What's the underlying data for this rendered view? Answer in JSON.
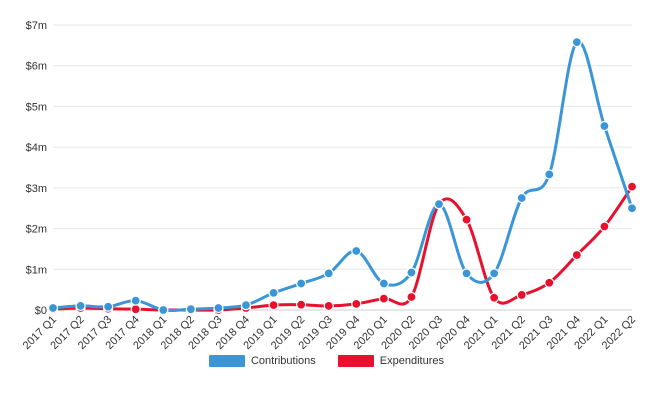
{
  "chart_data": {
    "type": "line",
    "categories": [
      "2017 Q1",
      "2017 Q2",
      "2017 Q3",
      "2017 Q4",
      "2018 Q1",
      "2018 Q2",
      "2018 Q3",
      "2018 Q4",
      "2019 Q1",
      "2019 Q2",
      "2019 Q3",
      "2019 Q4",
      "2020 Q1",
      "2020 Q2",
      "2020 Q3",
      "2020 Q4",
      "2021 Q1",
      "2021 Q2",
      "2021 Q3",
      "2021 Q4",
      "2022 Q1",
      "2022 Q2"
    ],
    "y_tick_values": [
      0,
      1,
      2,
      3,
      4,
      5,
      6,
      7
    ],
    "y_tick_labels": [
      "$0",
      "$1m",
      "$2m",
      "$3m",
      "$4m",
      "$5m",
      "$6m",
      "$7m"
    ],
    "ylim": [
      0,
      7
    ],
    "y_unit": "millions of dollars",
    "grid": true,
    "legend_position": "bottom-center",
    "series": [
      {
        "name": "Contributions",
        "color": "#3a96d6",
        "values": [
          0.05,
          0.1,
          0.08,
          0.23,
          0.0,
          0.02,
          0.05,
          0.12,
          0.42,
          0.65,
          0.9,
          1.45,
          0.65,
          0.92,
          2.6,
          0.9,
          0.9,
          2.75,
          3.33,
          6.58,
          4.52,
          2.5
        ]
      },
      {
        "name": "Expenditures",
        "color": "#e8112d",
        "values": [
          0.02,
          0.05,
          0.03,
          0.02,
          0.0,
          0.0,
          0.0,
          0.05,
          0.12,
          0.13,
          0.1,
          0.15,
          0.28,
          0.32,
          2.6,
          2.22,
          0.3,
          0.37,
          0.67,
          1.35,
          2.05,
          3.03
        ]
      }
    ]
  }
}
